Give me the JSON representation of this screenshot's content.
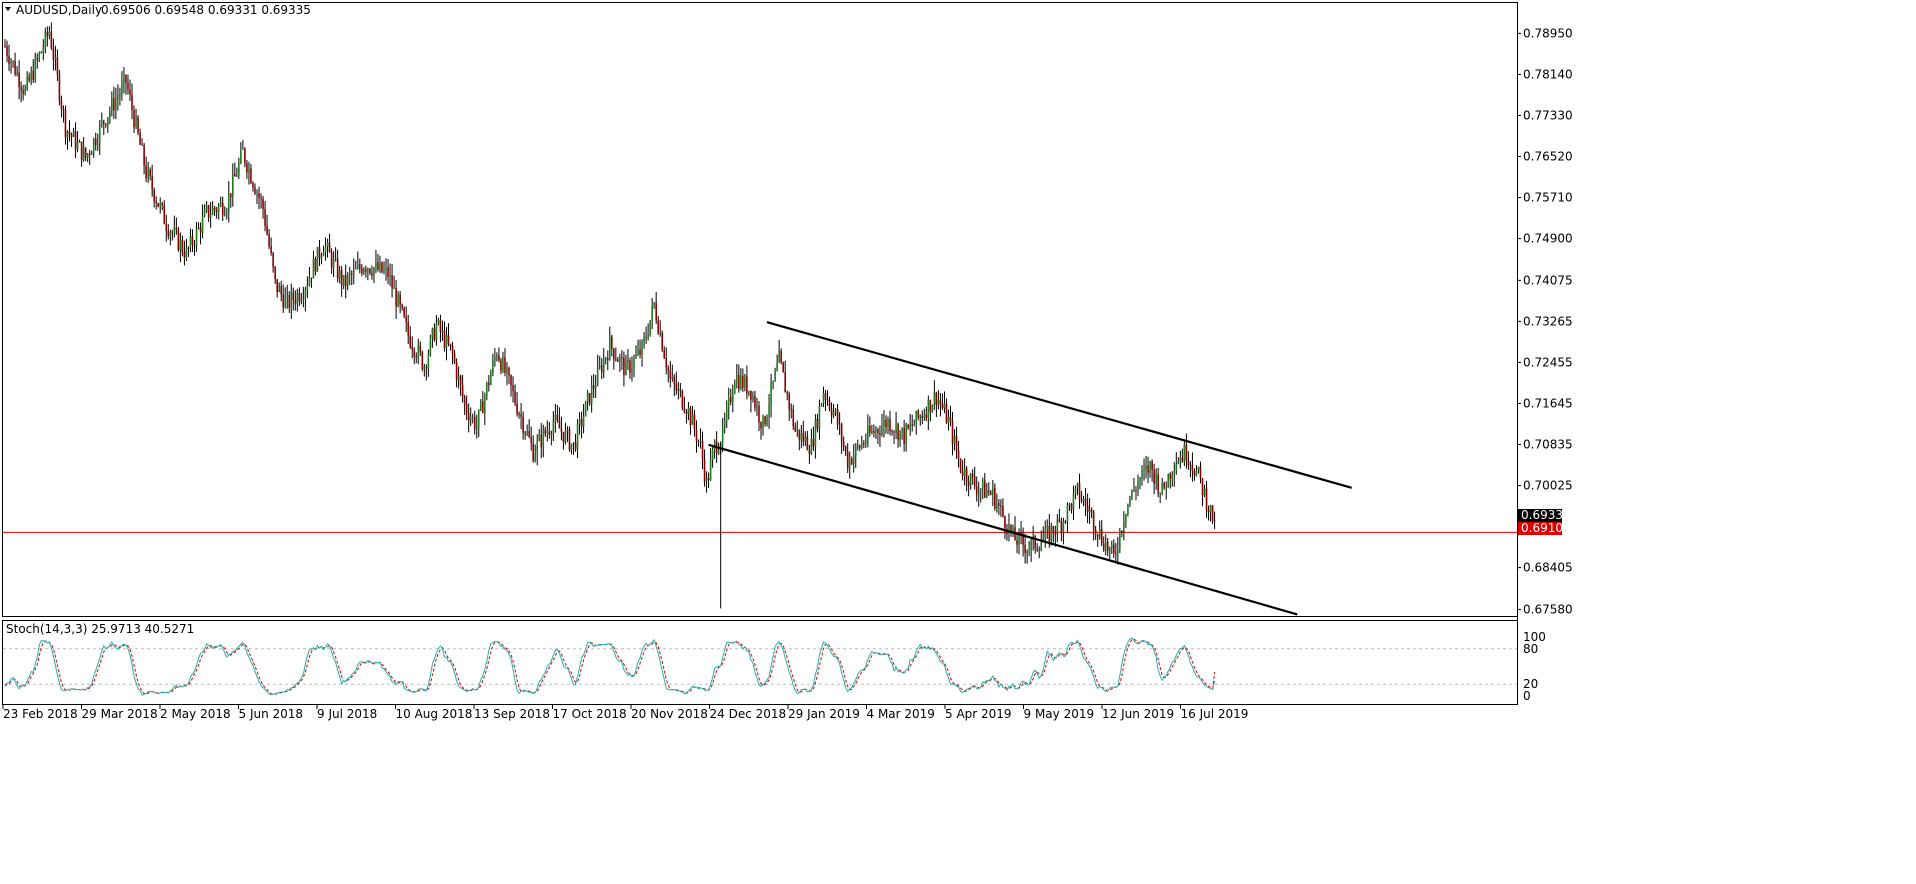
{
  "header": {
    "symbol": "AUDUSD,Daily",
    "ohlc": "0.69506 0.69548 0.69331 0.69335"
  },
  "indicator": {
    "label": "Stoch(14,3,3) 25.9713 40.5271",
    "levels": [
      "100",
      "80",
      "20",
      "0"
    ]
  },
  "price_badges": {
    "last": "0.69335",
    "line": "0.69100"
  },
  "colors": {
    "bull": "#1e7a1e",
    "bear": "#8b0000",
    "hline": "#e00000",
    "stoch_main": "#20b2aa",
    "stoch_signal": "#e00000",
    "badge_last": "#000000",
    "badge_line": "#e00000"
  },
  "chart_data": {
    "type": "candlestick",
    "title": "AUDUSD,Daily",
    "y_ticks": [
      "0.78950",
      "0.78140",
      "0.77330",
      "0.76520",
      "0.75710",
      "0.74900",
      "0.74075",
      "0.73265",
      "0.72455",
      "0.71645",
      "0.70835",
      "0.70025",
      "0.69335",
      "0.69100",
      "0.68405",
      "0.67580"
    ],
    "ylim": [
      0.6745,
      0.7955
    ],
    "x_ticks": [
      "23 Feb 2018",
      "29 Mar 2018",
      "2 May 2018",
      "5 Jun 2018",
      "9 Jul 2018",
      "10 Aug 2018",
      "13 Sep 2018",
      "17 Oct 2018",
      "20 Nov 2018",
      "24 Dec 2018",
      "29 Jan 2019",
      "4 Mar 2019",
      "5 Apr 2019",
      "9 May 2019",
      "12 Jun 2019",
      "16 Jul 2019"
    ],
    "horizontal_line": 0.691,
    "last_price": 0.69335,
    "price_path": [
      [
        0,
        0.787
      ],
      [
        10,
        0.778
      ],
      [
        22,
        0.79
      ],
      [
        30,
        0.771
      ],
      [
        40,
        0.765
      ],
      [
        50,
        0.773
      ],
      [
        60,
        0.78
      ],
      [
        70,
        0.762
      ],
      [
        80,
        0.752
      ],
      [
        90,
        0.746
      ],
      [
        100,
        0.754
      ],
      [
        110,
        0.756
      ],
      [
        118,
        0.766
      ],
      [
        128,
        0.755
      ],
      [
        134,
        0.74
      ],
      [
        140,
        0.736
      ],
      [
        148,
        0.739
      ],
      [
        158,
        0.748
      ],
      [
        168,
        0.74
      ],
      [
        178,
        0.744
      ],
      [
        190,
        0.742
      ],
      [
        200,
        0.73
      ],
      [
        208,
        0.724
      ],
      [
        214,
        0.732
      ],
      [
        222,
        0.726
      ],
      [
        228,
        0.716
      ],
      [
        234,
        0.712
      ],
      [
        244,
        0.727
      ],
      [
        254,
        0.716
      ],
      [
        262,
        0.707
      ],
      [
        272,
        0.713
      ],
      [
        282,
        0.708
      ],
      [
        290,
        0.718
      ],
      [
        300,
        0.728
      ],
      [
        308,
        0.723
      ],
      [
        316,
        0.727
      ],
      [
        322,
        0.736
      ],
      [
        330,
        0.721
      ],
      [
        338,
        0.716
      ],
      [
        345,
        0.708
      ],
      [
        348,
        0.7005
      ],
      [
        352,
        0.708
      ],
      [
        356,
        0.71
      ],
      [
        362,
        0.722
      ],
      [
        370,
        0.719
      ],
      [
        376,
        0.712
      ],
      [
        384,
        0.725
      ],
      [
        392,
        0.711
      ],
      [
        400,
        0.708
      ],
      [
        406,
        0.719
      ],
      [
        412,
        0.714
      ],
      [
        418,
        0.705
      ],
      [
        428,
        0.71
      ],
      [
        438,
        0.713
      ],
      [
        446,
        0.71
      ],
      [
        454,
        0.714
      ],
      [
        462,
        0.718
      ],
      [
        468,
        0.713
      ],
      [
        474,
        0.704
      ],
      [
        482,
        0.7
      ],
      [
        490,
        0.6985
      ],
      [
        500,
        0.69
      ],
      [
        508,
        0.688
      ],
      [
        516,
        0.69
      ],
      [
        524,
        0.693
      ],
      [
        532,
        0.699
      ],
      [
        538,
        0.695
      ],
      [
        544,
        0.69
      ],
      [
        550,
        0.686
      ],
      [
        556,
        0.696
      ],
      [
        562,
        0.701
      ],
      [
        568,
        0.704
      ],
      [
        574,
        0.699
      ],
      [
        580,
        0.705
      ],
      [
        586,
        0.707
      ],
      [
        592,
        0.702
      ],
      [
        598,
        0.695
      ],
      [
        600,
        0.6934
      ]
    ],
    "spike": {
      "at": 355,
      "low": 0.676,
      "high": 0.709
    },
    "stochastic": {
      "main": 25.9713,
      "signal": 40.5271,
      "levels": [
        80,
        20
      ],
      "range": [
        0,
        100
      ]
    },
    "trendlines": [
      {
        "from": [
          378,
          0.7325
        ],
        "to": [
          668,
          0.6998
        ]
      },
      {
        "from": [
          349,
          0.7083
        ],
        "to": [
          641,
          0.6748
        ]
      }
    ]
  }
}
